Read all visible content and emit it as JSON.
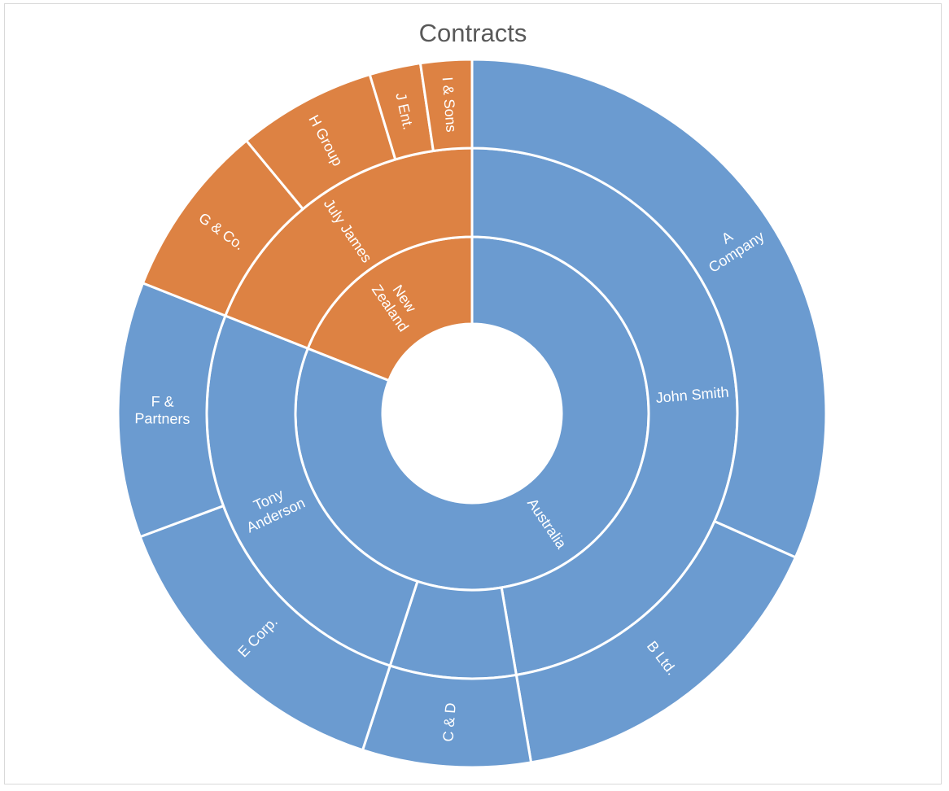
{
  "chart_data": {
    "type": "sunburst",
    "title": "Contracts",
    "colors": {
      "Australia": "#6b9bd0",
      "New Zealand": "#dd8243",
      "separator": "#ffffff",
      "label": "#ffffff",
      "title": "#595959",
      "frame": "#d9d9d9"
    },
    "hierarchy": [
      {
        "name": "Australia",
        "children": [
          {
            "name": "John Smith",
            "children": [
              {
                "name": "A Company",
                "value": 95
              },
              {
                "name": "B Ltd.",
                "value": 47
              }
            ]
          },
          {
            "name": "",
            "children": [
              {
                "name": "C & D",
                "value": 23
              }
            ]
          },
          {
            "name": "Tony Anderson",
            "children": [
              {
                "name": "E Corp.",
                "value": 43
              },
              {
                "name": "F & Partners",
                "value": 35
              }
            ]
          }
        ]
      },
      {
        "name": "New Zealand",
        "children": [
          {
            "name": "July James",
            "children": [
              {
                "name": "G & Co.",
                "value": 24
              },
              {
                "name": "H Group",
                "value": 19
              },
              {
                "name": "J Ent.",
                "value": 7
              },
              {
                "name": "I & Sons",
                "value": 7
              }
            ]
          }
        ]
      }
    ],
    "display_labels": {
      "Australia": [
        "Australia"
      ],
      "New Zealand": [
        "New",
        "Zealand"
      ],
      "John Smith": [
        "John Smith"
      ],
      "Tony Anderson": [
        "Tony",
        "Anderson"
      ],
      "July James": [
        "July James"
      ],
      "A Company": [
        "A",
        "Company"
      ],
      "B Ltd.": [
        "B Ltd."
      ],
      "C & D": [
        "C & D"
      ],
      "E Corp.": [
        "E Corp."
      ],
      "F & Partners": [
        "F &",
        "Partners"
      ],
      "G & Co.": [
        "G & Co."
      ],
      "H Group": [
        "H Group"
      ],
      "J Ent.": [
        "J Ent."
      ],
      "I & Sons": [
        "I & Sons"
      ]
    }
  }
}
